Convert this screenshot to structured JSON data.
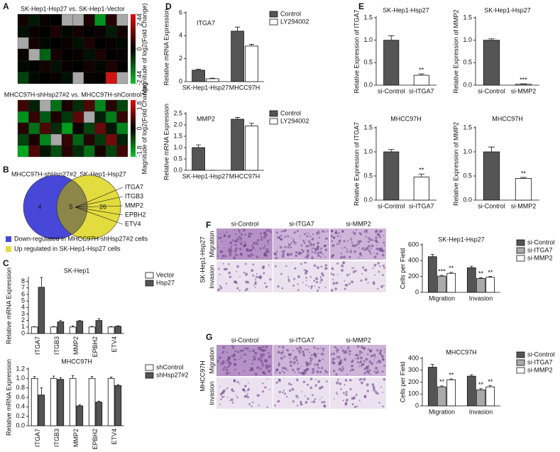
{
  "panel_labels": [
    "A",
    "B",
    "C",
    "D",
    "E",
    "F",
    "G"
  ],
  "chart_data": [
    {
      "type": "heatmap",
      "title": "SK-Hep1-Hsp27 vs. SK-Hep1-Vector",
      "colorbar_label": "Magnitude of log2(Fold Change)",
      "clim": [
        -2.44,
        2.44
      ],
      "colorbar_ticks": [
        2.44,
        0,
        -2.44
      ],
      "values": [
        [
          0.2,
          -0.3,
          0.1,
          0.0,
          null,
          null,
          0.3,
          -1.8,
          0.4,
          null
        ],
        [
          -0.2,
          0.1,
          0.0,
          0.3,
          -0.1,
          0.2,
          0.0,
          0.1,
          -0.3,
          0.2
        ],
        [
          null,
          0.2,
          -0.1,
          0.0,
          0.1,
          -0.2,
          0.3,
          0.0,
          0.1,
          -0.1
        ],
        [
          0.1,
          null,
          -1.2,
          0.2,
          0.0,
          0.1,
          -0.2,
          0.3,
          0.0,
          0.1
        ],
        [
          -0.1,
          0.0,
          0.2,
          -0.2,
          0.1,
          0.0,
          0.2,
          -0.1,
          0.3,
          0.0
        ],
        [
          -0.8,
          -0.1,
          0.0,
          0.1,
          -0.2,
          null,
          0.1,
          0.0,
          2.2,
          null
        ]
      ]
    },
    {
      "type": "heatmap",
      "title": "MHCC97H-shHsp27#2 vs. MHCC97H-shControl",
      "colorbar_label": "Magnitude of log2(Fold Change)",
      "clim": [
        -1.8,
        1.8
      ],
      "colorbar_ticks": [
        1.8,
        0,
        -1.8
      ],
      "values": [
        [
          0.5,
          -0.3,
          null,
          -1.0,
          0.2,
          -0.4,
          0.6,
          -1.2,
          0.3,
          -0.6
        ],
        [
          -1.3,
          0.4,
          -0.8,
          0.2,
          -0.5,
          0.7,
          null,
          -0.3,
          -1.1,
          0.4
        ],
        [
          0.3,
          -1.0,
          0.6,
          -0.4,
          -1.4,
          0.1,
          -0.6,
          0.8,
          -0.2,
          -1.2
        ],
        [
          -0.6,
          0.2,
          -1.2,
          null,
          0.4,
          -0.9,
          0.3,
          -0.5,
          0.9,
          -0.3
        ],
        [
          -1.5,
          0.6,
          -0.2,
          -0.7,
          0.3,
          -0.4,
          -1.0,
          0.2,
          -0.6,
          0.5
        ]
      ]
    },
    {
      "type": "bar",
      "title": "SK-Hep1",
      "y_label": "Relative mRNA Expression",
      "categories": [
        "ITGA7",
        "ITGB3",
        "MMP2",
        "EPBH2",
        "ETV4"
      ],
      "series": [
        {
          "name": "Vector",
          "color": "#ffffff",
          "values": [
            1,
            1,
            1,
            1,
            1
          ],
          "errors": [
            0.05,
            0.08,
            0.15,
            0.1,
            0.08
          ]
        },
        {
          "name": "Hsp27",
          "color": "#555555",
          "values": [
            7.1,
            1.8,
            1.9,
            2,
            1.1
          ],
          "errors": [
            1.5,
            0.2,
            0.1,
            0.3,
            0.1
          ]
        }
      ],
      "ylim": [
        0,
        8.5
      ],
      "yticks": [
        0,
        1,
        2,
        3,
        4,
        5,
        6,
        7,
        8
      ],
      "legend": "upper right"
    },
    {
      "type": "bar",
      "title": "MHCC97H",
      "y_label": "Relative mRNA Expression",
      "categories": [
        "ITGA7",
        "ITGB3",
        "MMP2",
        "EPBH2",
        "ETV4"
      ],
      "series": [
        {
          "name": "shControl",
          "color": "#ffffff",
          "values": [
            1,
            1,
            1,
            1,
            1
          ],
          "errors": [
            0.04,
            0.05,
            0.06,
            0.04,
            0.03
          ]
        },
        {
          "name": "shHsp27#2",
          "color": "#555555",
          "values": [
            0.65,
            0.98,
            0.42,
            0.5,
            0.85
          ],
          "errors": [
            0.15,
            0.04,
            0.02,
            0.02,
            0.02
          ]
        }
      ],
      "ylim": [
        0,
        1.2
      ],
      "yticks": [
        {
          "value": 0,
          "label": "0.0"
        },
        0.2,
        0.4,
        0.6,
        0.8,
        {
          "value": 1,
          "label": "1.0"
        },
        1.2
      ],
      "legend": "upper right"
    },
    {
      "type": "bar",
      "title": "ITGA7",
      "y_label": "Relative mRNA Expression",
      "categories": [
        "SK-Hep1-Hsp27",
        "MHCC97H"
      ],
      "series": [
        {
          "name": "Control",
          "color": "#555555",
          "values": [
            1,
            4.4
          ],
          "errors": [
            0.08,
            0.35
          ]
        },
        {
          "name": "LY294002",
          "color": "#ffffff",
          "values": [
            0.25,
            3.1
          ],
          "errors": [
            0.05,
            0.15
          ]
        }
      ],
      "ylim": [
        0,
        6
      ],
      "yticks": [
        0,
        2,
        4,
        6
      ],
      "legend": "upper right"
    },
    {
      "type": "bar",
      "title": "MMP2",
      "y_label": "Relative mRNA Expression",
      "categories": [
        "SK-Hep1-Hsp27",
        "MHCC97H"
      ],
      "series": [
        {
          "name": "Control",
          "color": "#555555",
          "values": [
            1,
            2.25
          ],
          "errors": [
            0.12,
            0.08
          ]
        },
        {
          "name": "LY294002",
          "color": "#ffffff",
          "values": [
            0,
            1.95
          ],
          "errors": [
            0,
            0.12
          ]
        }
      ],
      "ylim": [
        0,
        2.5
      ],
      "yticks": [
        {
          "value": 0,
          "label": "0.0"
        },
        0.5,
        {
          "value": 1,
          "label": "1.0"
        },
        1.5,
        {
          "value": 2,
          "label": "2.0"
        },
        2.5
      ],
      "legend": "upper right"
    },
    {
      "type": "bar",
      "title": "SK-Hep1-Hsp27",
      "y_label": "Relative Expression of ITGA7",
      "categories": [
        "si-Control",
        "si-ITGA7"
      ],
      "values": [
        1,
        0.22
      ],
      "errors": [
        0.1,
        0.03
      ],
      "colors": [
        "#555555",
        "#ffffff"
      ],
      "annotations": [
        null,
        "**"
      ],
      "ylim": [
        0,
        1.5
      ],
      "yticks": [
        {
          "value": 0,
          "label": "0.0"
        },
        0.5,
        {
          "value": 1,
          "label": "1.0"
        },
        1.5
      ]
    },
    {
      "type": "bar",
      "title": "SK-Hep1-Hsp27",
      "y_label": "Relative Expression of MMP2",
      "categories": [
        "si-Control",
        "si-MMP2"
      ],
      "values": [
        1,
        0.02
      ],
      "errors": [
        0.03,
        0.01
      ],
      "colors": [
        "#555555",
        "#ffffff"
      ],
      "annotations": [
        null,
        "***"
      ],
      "ylim": [
        0,
        1.5
      ],
      "yticks": [
        {
          "value": 0,
          "label": "0.0"
        },
        0.5,
        {
          "value": 1,
          "label": "1.0"
        },
        1.5
      ]
    },
    {
      "type": "bar",
      "title": "MHCC97H",
      "y_label": "Relative Expression of ITGA7",
      "categories": [
        "si-Control",
        "si-ITGA7"
      ],
      "values": [
        1,
        0.48
      ],
      "errors": [
        0.05,
        0.06
      ],
      "colors": [
        "#555555",
        "#ffffff"
      ],
      "annotations": [
        null,
        "**"
      ],
      "ylim": [
        0,
        1.5
      ],
      "yticks": [
        {
          "value": 0,
          "label": "0.0"
        },
        0.5,
        {
          "value": 1,
          "label": "1.0"
        },
        1.5
      ]
    },
    {
      "type": "bar",
      "title": "MHCC97H",
      "y_label": "Relative Expression of MMP2",
      "categories": [
        "si-Control",
        "si-MMP2"
      ],
      "values": [
        1,
        0.45
      ],
      "errors": [
        0.1,
        0.02
      ],
      "colors": [
        "#555555",
        "#ffffff"
      ],
      "annotations": [
        null,
        "**"
      ],
      "ylim": [
        0,
        1.5
      ],
      "yticks": [
        {
          "value": 0,
          "label": "0.0"
        },
        0.5,
        {
          "value": 1,
          "label": "1.0"
        },
        1.5
      ]
    },
    {
      "type": "bar",
      "title": "SK-Hep1-Hsp27",
      "y_label": "Cells per Field",
      "categories": [
        "Migration",
        "Invasion"
      ],
      "series": [
        {
          "name": "si-Control",
          "color": "#555555",
          "values": [
            450,
            310
          ],
          "errors": [
            30,
            20
          ],
          "annotations": [
            null,
            null
          ]
        },
        {
          "name": "si-ITGA7",
          "color": "#aaaaaa",
          "values": [
            205,
            175
          ],
          "errors": [
            10,
            10
          ],
          "annotations": [
            "***",
            "**"
          ]
        },
        {
          "name": "si-MMP2",
          "color": "#ffffff",
          "values": [
            240,
            190
          ],
          "errors": [
            12,
            10
          ],
          "annotations": [
            "**",
            "**"
          ]
        }
      ],
      "ylim": [
        0,
        600
      ],
      "yticks": [
        0,
        200,
        400,
        600
      ],
      "legend": "right"
    },
    {
      "type": "bar",
      "title": "MHCC97H",
      "y_label": "Cells per Field",
      "categories": [
        "Migration",
        "Invasion"
      ],
      "series": [
        {
          "name": "si-Control",
          "color": "#555555",
          "values": [
            325,
            250
          ],
          "errors": [
            25,
            12
          ],
          "annotations": [
            null,
            null
          ]
        },
        {
          "name": "si-ITGA7",
          "color": "#aaaaaa",
          "values": [
            160,
            135
          ],
          "errors": [
            8,
            10
          ],
          "annotations": [
            "**",
            "**"
          ]
        },
        {
          "name": "si-MMP2",
          "color": "#ffffff",
          "values": [
            220,
            160
          ],
          "errors": [
            6,
            10
          ],
          "annotations": [
            "**",
            "**"
          ]
        }
      ],
      "ylim": [
        0,
        400
      ],
      "yticks": [
        0,
        100,
        200,
        300,
        400
      ],
      "legend": "right"
    }
  ],
  "venn": {
    "sets": [
      "MHCC97H-shHsp27#2",
      "SK-Hep1-Hsp27"
    ],
    "counts": [
      4,
      5,
      26
    ],
    "genes": [
      "ITGA7",
      "ITGB3",
      "MMP2",
      "EPBH2",
      "ETV4"
    ],
    "legend": [
      "Down-regulated in MHCC97H-shHsp27#2 cells",
      "Up regulated in SK-Hep1-Hsp27 cells"
    ]
  },
  "micrographs": [
    {
      "cell_line": "SK-Hep1-Hsp27",
      "columns": [
        "si-Control",
        "si-ITGA7",
        "si-MMP2"
      ],
      "rows": [
        "Migration",
        "Invasion"
      ]
    },
    {
      "cell_line": "MHCC97H",
      "columns": [
        "si-Control",
        "si-ITGA7",
        "si-MMP2"
      ],
      "rows": [
        "Migration",
        "Invasion"
      ]
    }
  ]
}
